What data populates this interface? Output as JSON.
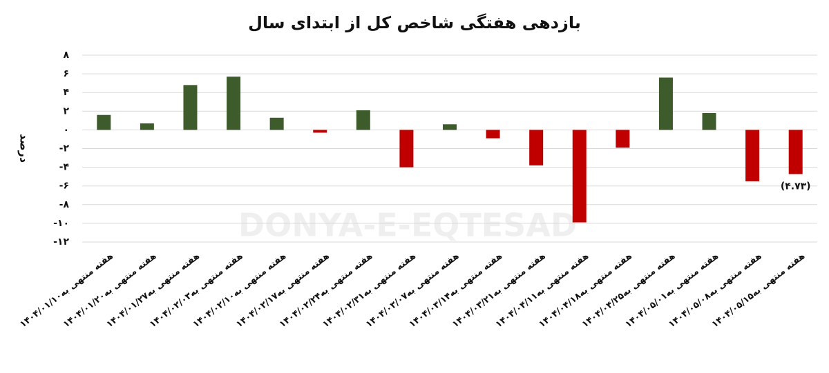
{
  "chart_data": {
    "type": "bar",
    "title": "بازدهی هفتگی شاخص کل از ابتدای سال",
    "y_label": "درصد",
    "watermark": "DONYA-E-EQTESAD",
    "categories": [
      "هفته منتهی به۱۴۰۴/۰۱/۱۰",
      "هفته منتهی به۱۴۰۴/۰۱/۲۰",
      "هفته منتهی به۱۴۰۴/۰۱/۲۷",
      "هفته منتهی به۱۴۰۴/۰۲/۰۳",
      "هفته منتهی به۱۴۰۴/۰۲/۱۰",
      "هفته منتهی به۱۴۰۴/۰۲/۱۷",
      "هفته منتهی به۱۴۰۴/۰۲/۲۴",
      "هفته منتهی به۱۴۰۴/۰۲/۳۱",
      "هفته منتهی به۱۴۰۴/۰۳/۰۷",
      "هفته منتهی به۱۴۰۴/۰۳/۱۴",
      "هفته منتهی به۱۴۰۴/۰۳/۲۱",
      "هفته منتهی به۱۴۰۴/۰۴/۱۱",
      "هفته منتهی به۱۴۰۴/۰۴/۱۸",
      "هفته منتهی به۱۴۰۴/۰۴/۲۵",
      "هفته منتهی به۱۴۰۴/۰۵/۰۱",
      "هفته منتهی به۱۴۰۴/۰۵/۰۸",
      "هفته منتهی به۱۴۰۴/۰۵/۱۵"
    ],
    "values": [
      1.6,
      0.7,
      4.8,
      5.7,
      1.3,
      -0.3,
      2.1,
      -4.0,
      0.6,
      -0.9,
      -3.8,
      -9.9,
      -1.9,
      5.6,
      1.8,
      -5.5,
      -4.73
    ],
    "value_labels": [
      null,
      null,
      null,
      null,
      null,
      null,
      null,
      null,
      null,
      null,
      null,
      null,
      null,
      null,
      null,
      null,
      "(۴.۷۳)"
    ],
    "positive_color": "#3e5b2b",
    "negative_color": "#c00000",
    "ylim": [
      -12,
      8
    ],
    "yticks": [
      {
        "value": 8,
        "label": "۸"
      },
      {
        "value": 6,
        "label": "۶"
      },
      {
        "value": 4,
        "label": "۴"
      },
      {
        "value": 2,
        "label": "۲"
      },
      {
        "value": 0,
        "label": "۰"
      },
      {
        "value": -2,
        "label": "-۲"
      },
      {
        "value": -4,
        "label": "-۴"
      },
      {
        "value": -6,
        "label": "-۶"
      },
      {
        "value": -8,
        "label": "-۸"
      },
      {
        "value": -10,
        "label": "-۱۰"
      },
      {
        "value": -12,
        "label": "-۱۲"
      }
    ],
    "grid": true
  }
}
